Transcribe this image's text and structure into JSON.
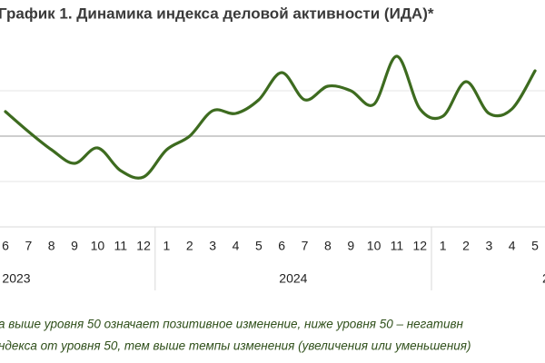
{
  "chart_data": {
    "type": "line",
    "title": "График 1. Динамика индекса деловой активности (ИДА)*",
    "groups": [
      {
        "label": "2023",
        "categories": [
          "6",
          "7",
          "8",
          "9",
          "10",
          "11",
          "12"
        ]
      },
      {
        "label": "2024",
        "categories": [
          "1",
          "2",
          "3",
          "4",
          "5",
          "6",
          "7",
          "8",
          "9",
          "10",
          "11",
          "12"
        ]
      },
      {
        "label": "2",
        "categories": [
          "1",
          "2",
          "3",
          "4",
          "5"
        ]
      }
    ],
    "series": [
      {
        "name": "ИДА",
        "color": "#3d6b1f",
        "values": [
          50.54,
          50.1,
          49.7,
          49.4,
          49.74,
          49.24,
          49.1,
          49.7,
          50.0,
          50.56,
          50.5,
          50.8,
          51.4,
          50.8,
          51.1,
          51.0,
          50.7,
          51.76,
          50.6,
          50.44,
          51.2,
          50.5,
          50.6,
          51.44
        ]
      }
    ],
    "ylim": [
      48,
      52
    ],
    "yticks": [
      49,
      50,
      51
    ],
    "baseline": 50,
    "grid": true,
    "notes": [
      "а выше уровня 50 означает позитивное изменение, ниже уровня 50 – негативн",
      "ндекса от уровня 50, тем выше темпы изменения (увеличения или уменьшения)"
    ]
  }
}
